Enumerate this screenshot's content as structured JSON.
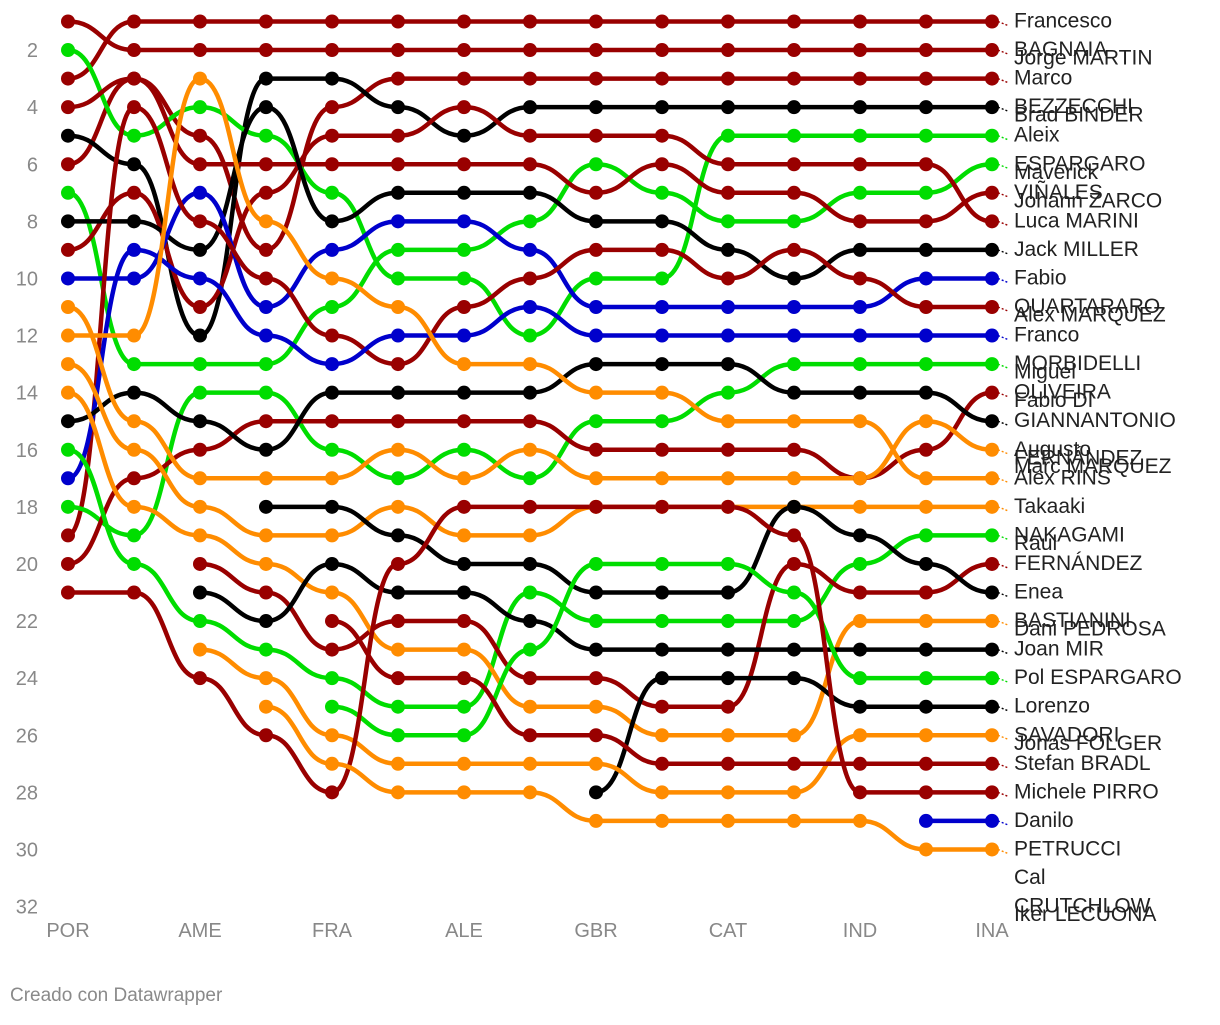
{
  "credit": "Creado con Datawrapper",
  "colors": {
    "dark_red": "#990000",
    "green": "#00dd00",
    "black": "#000000",
    "orange": "#ff8c00",
    "blue": "#0000cc",
    "axis_text": "#888888"
  },
  "chart_data": {
    "type": "line",
    "subtype": "bump-chart-rank",
    "title": "",
    "xlabel": "",
    "ylabel": "",
    "y_reversed": true,
    "ylim": [
      1,
      32
    ],
    "y_ticks": [
      2,
      4,
      6,
      8,
      10,
      12,
      14,
      16,
      18,
      20,
      22,
      24,
      26,
      28,
      30,
      32
    ],
    "x_tick_labels": [
      "POR",
      "AME",
      "FRA",
      "ALE",
      "GBR",
      "CAT",
      "IND",
      "INA"
    ],
    "x_tick_positions": [
      1,
      3,
      5,
      7,
      9,
      11,
      13,
      15
    ],
    "x": [
      1,
      2,
      3,
      4,
      5,
      6,
      7,
      8,
      9,
      10,
      11,
      12,
      13,
      14,
      15
    ],
    "grid": false,
    "legend": "labels-at-line-end-right",
    "series": [
      {
        "name": "Francesco BAGNAIA",
        "color": "dark_red",
        "values": [
          3,
          1,
          1,
          1,
          1,
          1,
          1,
          1,
          1,
          1,
          1,
          1,
          1,
          1,
          1
        ]
      },
      {
        "name": "Jorge MARTIN",
        "color": "dark_red",
        "values": [
          1,
          2,
          2,
          2,
          2,
          2,
          2,
          2,
          2,
          2,
          2,
          2,
          2,
          2,
          2
        ]
      },
      {
        "name": "Marco BEZZECCHI",
        "color": "dark_red",
        "values": [
          6,
          3,
          5,
          9,
          4,
          3,
          3,
          3,
          3,
          3,
          3,
          3,
          3,
          3,
          3
        ]
      },
      {
        "name": "Brad BINDER",
        "color": "black",
        "values": [
          5,
          6,
          12,
          3,
          3,
          4,
          5,
          4,
          4,
          4,
          4,
          4,
          4,
          4,
          4
        ]
      },
      {
        "name": "Aleix ESPARGARO",
        "color": "green",
        "values": [
          2,
          5,
          4,
          5,
          7,
          10,
          10,
          12,
          10,
          10,
          5,
          5,
          5,
          5,
          5
        ]
      },
      {
        "name": "Maverick VIÑALES",
        "color": "green",
        "values": [
          7,
          13,
          13,
          13,
          11,
          9,
          9,
          8,
          6,
          7,
          8,
          8,
          7,
          7,
          6
        ]
      },
      {
        "name": "Johann ZARCO",
        "color": "dark_red",
        "values": [
          4,
          3,
          6,
          6,
          6,
          6,
          6,
          6,
          7,
          6,
          7,
          7,
          8,
          8,
          7
        ]
      },
      {
        "name": "Luca MARINI",
        "color": "dark_red",
        "values": [
          9,
          7,
          11,
          7,
          5,
          5,
          4,
          5,
          5,
          5,
          6,
          6,
          6,
          6,
          8
        ]
      },
      {
        "name": "Jack MILLER",
        "color": "black",
        "values": [
          8,
          8,
          9,
          4,
          8,
          7,
          7,
          7,
          8,
          8,
          9,
          10,
          9,
          9,
          9
        ]
      },
      {
        "name": "Fabio QUARTARARO",
        "color": "blue",
        "values": [
          10,
          10,
          7,
          11,
          9,
          8,
          8,
          9,
          11,
          11,
          11,
          11,
          11,
          10,
          10
        ]
      },
      {
        "name": "Alex MARQUEZ",
        "color": "dark_red",
        "values": [
          19,
          4,
          8,
          10,
          12,
          13,
          11,
          10,
          9,
          9,
          10,
          9,
          10,
          11,
          11
        ]
      },
      {
        "name": "Franco MORBIDELLI",
        "color": "blue",
        "values": [
          17,
          9,
          10,
          12,
          13,
          12,
          12,
          11,
          12,
          12,
          12,
          12,
          12,
          12,
          12
        ]
      },
      {
        "name": "Miguel OLIVEIRA",
        "color": "green",
        "values": [
          18,
          19,
          14,
          14,
          16,
          17,
          16,
          17,
          15,
          15,
          14,
          13,
          13,
          13,
          13
        ]
      },
      {
        "name": "Fabio DI GIANNANTONIO",
        "color": "dark_red",
        "values": [
          20,
          17,
          16,
          15,
          15,
          15,
          15,
          15,
          16,
          16,
          16,
          16,
          17,
          16,
          14
        ]
      },
      {
        "name": "Augusto FERNÁNDEZ",
        "color": "black",
        "values": [
          15,
          14,
          15,
          16,
          14,
          14,
          14,
          14,
          13,
          13,
          13,
          14,
          14,
          14,
          15
        ]
      },
      {
        "name": "Marc MARQUEZ",
        "color": "orange",
        "values": [
          11,
          15,
          17,
          17,
          17,
          16,
          17,
          16,
          17,
          17,
          17,
          17,
          17,
          15,
          16
        ]
      },
      {
        "name": "Alex RINS",
        "color": "orange",
        "values": [
          12,
          12,
          3,
          8,
          10,
          11,
          13,
          13,
          14,
          14,
          15,
          15,
          15,
          17,
          17
        ]
      },
      {
        "name": "Takaaki NAKAGAMI",
        "color": "orange",
        "values": [
          13,
          16,
          18,
          19,
          19,
          18,
          19,
          19,
          18,
          18,
          18,
          18,
          18,
          18,
          18
        ]
      },
      {
        "name": "Raul FERNÁNDEZ",
        "color": "green",
        "values": [
          16,
          20,
          22,
          23,
          24,
          25,
          25,
          21,
          22,
          22,
          22,
          22,
          20,
          19,
          19
        ]
      },
      {
        "name": "Enea BASTIANINI",
        "color": "dark_red",
        "values": [
          null,
          null,
          20,
          21,
          23,
          22,
          22,
          24,
          24,
          25,
          25,
          20,
          21,
          21,
          20
        ]
      },
      {
        "name": "Dani PEDROSA",
        "color": "black",
        "values": [
          null,
          null,
          null,
          18,
          18,
          19,
          20,
          20,
          21,
          21,
          21,
          18,
          19,
          20,
          21
        ]
      },
      {
        "name": "Joan MIR",
        "color": "orange",
        "values": [
          14,
          18,
          19,
          20,
          21,
          23,
          23,
          25,
          25,
          26,
          26,
          26,
          22,
          22,
          22
        ]
      },
      {
        "name": "Pol ESPARGARO",
        "color": "black",
        "values": [
          null,
          null,
          21,
          22,
          20,
          21,
          21,
          22,
          23,
          23,
          23,
          23,
          23,
          23,
          23
        ]
      },
      {
        "name": "Lorenzo SAVADORI",
        "color": "green",
        "values": [
          null,
          null,
          null,
          null,
          25,
          26,
          26,
          23,
          20,
          20,
          20,
          21,
          24,
          24,
          24
        ]
      },
      {
        "name": "Jonas FOLGER",
        "color": "black",
        "values": [
          null,
          null,
          null,
          null,
          null,
          null,
          null,
          null,
          28,
          24,
          24,
          24,
          25,
          25,
          25
        ]
      },
      {
        "name": "Stefan BRADL",
        "color": "orange",
        "values": [
          null,
          null,
          23,
          24,
          26,
          27,
          27,
          27,
          27,
          28,
          28,
          28,
          26,
          26,
          26
        ]
      },
      {
        "name": "Michele PIRRO",
        "color": "dark_red",
        "values": [
          null,
          null,
          null,
          null,
          22,
          24,
          24,
          26,
          26,
          27,
          27,
          27,
          27,
          27,
          27
        ]
      },
      {
        "name": "Danilo PETRUCCI",
        "color": "dark_red",
        "values": [
          21,
          21,
          24,
          26,
          28,
          20,
          18,
          18,
          18,
          18,
          18,
          19,
          28,
          28,
          28
        ]
      },
      {
        "name": "Cal CRUTCHLOW",
        "color": "blue",
        "values": [
          null,
          null,
          null,
          null,
          null,
          null,
          null,
          null,
          null,
          null,
          null,
          null,
          null,
          29,
          29
        ]
      },
      {
        "name": "Iker LECUONA",
        "color": "orange",
        "values": [
          null,
          null,
          null,
          25,
          27,
          28,
          28,
          28,
          29,
          29,
          29,
          29,
          29,
          30,
          30
        ]
      }
    ],
    "label_lines": [
      [
        "Francesco"
      ],
      [
        "BAGNAIA",
        "Jorge MARTIN"
      ],
      [
        "Marco"
      ],
      [
        "BEZZECCHI",
        "Brad BINDER"
      ],
      [
        "Aleix"
      ],
      [
        "ESPARGARO",
        "Maverick"
      ],
      [
        "VIÑALES",
        "Johann ZARCO"
      ],
      [
        "Luca MARINI"
      ],
      [
        "Jack MILLER"
      ],
      [
        "Fabio"
      ],
      [
        "QUARTARARO",
        "Alex MARQUEZ"
      ],
      [
        "Franco"
      ],
      [
        "MORBIDELLI",
        "Miguel"
      ],
      [
        "OLIVEIRA",
        "Fabio DI"
      ],
      [
        "GIANNANTONIO"
      ],
      [
        "Augusto",
        "FERNÁNDEZ",
        "Marc MARQUEZ"
      ],
      [
        "Alex RINS"
      ],
      [
        "Takaaki"
      ],
      [
        "NAKAGAMI",
        "Raul"
      ],
      [
        "FERNÁNDEZ"
      ],
      [
        "Enea"
      ],
      [
        "BASTIANINI",
        "Dani PEDROSA"
      ],
      [
        "Joan MIR"
      ],
      [
        "Pol ESPARGARO"
      ],
      [
        "Lorenzo"
      ],
      [
        "SAVADORI",
        "Jonas FOLGER"
      ],
      [
        "Stefan BRADL"
      ],
      [
        "Michele PIRRO"
      ],
      [
        "Danilo"
      ],
      [
        "PETRUCCI"
      ],
      [
        "Cal"
      ],
      [
        "CRUTCHLOW",
        "Iker LECUONA"
      ]
    ]
  }
}
